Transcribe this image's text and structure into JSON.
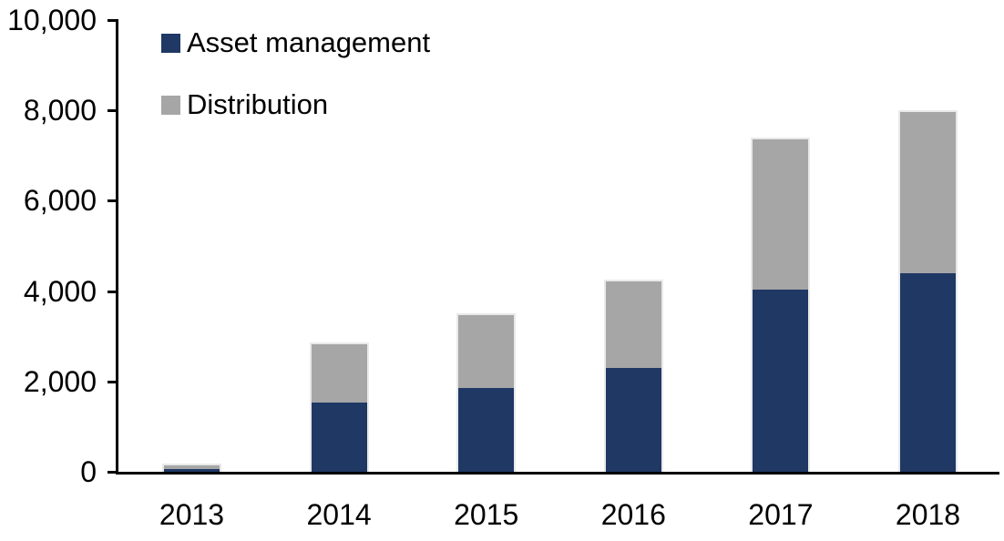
{
  "chart_data": {
    "type": "bar",
    "stacked": true,
    "title": "",
    "xlabel": "",
    "ylabel": "",
    "categories": [
      "2013",
      "2014",
      "2015",
      "2016",
      "2017",
      "2018"
    ],
    "series": [
      {
        "name": "Asset management",
        "color": "#1F3864",
        "values": [
          80,
          1550,
          1870,
          2310,
          4050,
          4420
        ]
      },
      {
        "name": "Distribution",
        "color": "#A6A6A6",
        "values": [
          110,
          1320,
          1630,
          1940,
          3350,
          3580
        ]
      }
    ],
    "totals": [
      190,
      2870,
      3500,
      4250,
      7400,
      8000
    ],
    "ylim": [
      0,
      10000
    ],
    "yticks": {
      "values": [
        0,
        2000,
        4000,
        6000,
        8000,
        10000
      ],
      "labels": [
        "0",
        "2,000",
        "4,000",
        "6,000",
        "8,000",
        "10,000"
      ]
    },
    "grid": false,
    "legend_position": "inside-top-left",
    "axis_color": "#000000",
    "background_color": "#FFFFFF",
    "bar_edge_color": "#E9E9E9"
  },
  "legend": {
    "items": [
      {
        "label": "Asset management",
        "color": "#1F3864"
      },
      {
        "label": "Distribution",
        "color": "#A6A6A6"
      }
    ]
  }
}
